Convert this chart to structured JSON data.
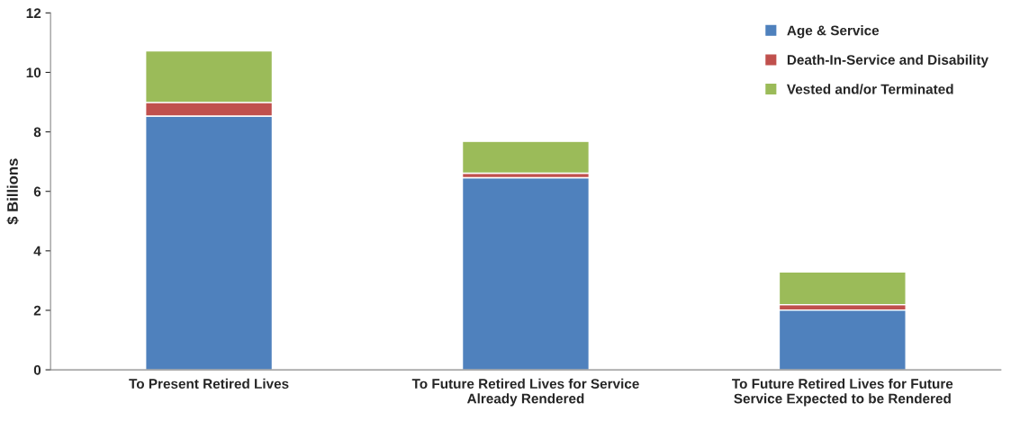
{
  "chart_data": {
    "type": "bar",
    "stacked": true,
    "ylabel": "$ Billions",
    "categories": [
      "To Present Retired Lives",
      "To Future Retired Lives for Service\nAlready Rendered",
      "To Future Retired Lives for Future\nService Expected to be Rendered"
    ],
    "series": [
      {
        "name": "Age & Service",
        "color": "#4f81bd",
        "values": [
          8.53,
          6.46,
          2.01
        ]
      },
      {
        "name": "Death-In-Service and Disability",
        "color": "#c0504d",
        "values": [
          0.46,
          0.15,
          0.18
        ]
      },
      {
        "name": "Vested and/or Terminated",
        "color": "#9bbb59",
        "values": [
          1.73,
          1.07,
          1.1
        ]
      }
    ],
    "ylim": [
      0,
      12
    ],
    "yticks": [
      0,
      2,
      4,
      6,
      8,
      10,
      12
    ],
    "grid": false,
    "legend": "top right"
  }
}
